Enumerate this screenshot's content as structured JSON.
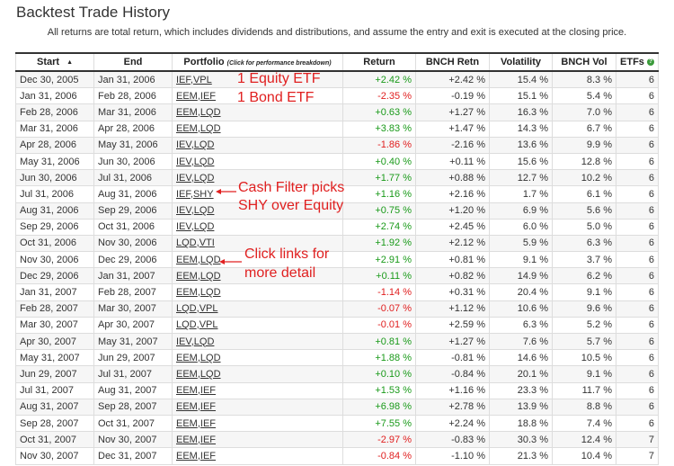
{
  "page": {
    "title": "Backtest Trade History",
    "subtitle": "All returns are total return, which includes dividends and distributions, and assume the entry and exit is executed at the closing price."
  },
  "table": {
    "headers": {
      "start": "Start",
      "end": "End",
      "portfolio": "Portfolio",
      "portfolio_note": "(Click for performance breakdown)",
      "return": "Return",
      "bench_return": "BNCH Retn",
      "volatility": "Volatility",
      "bench_vol": "BNCH Vol",
      "etfs": "ETFs"
    },
    "sort_icon": "sort-ascending-icon",
    "help_icon": "help-icon",
    "rows": [
      {
        "start": "Dec 30, 2005",
        "end": "Jan 31, 2006",
        "portfolio": [
          "IEF",
          "VPL"
        ],
        "ret": "+2.42 %",
        "bret": "+2.42 %",
        "vol": "15.4 %",
        "bvol": "8.3 %",
        "etfs": "6"
      },
      {
        "start": "Jan 31, 2006",
        "end": "Feb 28, 2006",
        "portfolio": [
          "EEM",
          "IEF"
        ],
        "ret": "-2.35 %",
        "bret": "-0.19 %",
        "vol": "15.1 %",
        "bvol": "5.4 %",
        "etfs": "6"
      },
      {
        "start": "Feb 28, 2006",
        "end": "Mar 31, 2006",
        "portfolio": [
          "EEM",
          "LQD"
        ],
        "ret": "+0.63 %",
        "bret": "+1.27 %",
        "vol": "16.3 %",
        "bvol": "7.0 %",
        "etfs": "6"
      },
      {
        "start": "Mar 31, 2006",
        "end": "Apr 28, 2006",
        "portfolio": [
          "EEM",
          "LQD"
        ],
        "ret": "+3.83 %",
        "bret": "+1.47 %",
        "vol": "14.3 %",
        "bvol": "6.7 %",
        "etfs": "6"
      },
      {
        "start": "Apr 28, 2006",
        "end": "May 31, 2006",
        "portfolio": [
          "IEV",
          "LQD"
        ],
        "ret": "-1.86 %",
        "bret": "-2.16 %",
        "vol": "13.6 %",
        "bvol": "9.9 %",
        "etfs": "6"
      },
      {
        "start": "May 31, 2006",
        "end": "Jun 30, 2006",
        "portfolio": [
          "IEV",
          "LQD"
        ],
        "ret": "+0.40 %",
        "bret": "+0.11 %",
        "vol": "15.6 %",
        "bvol": "12.8 %",
        "etfs": "6"
      },
      {
        "start": "Jun 30, 2006",
        "end": "Jul 31, 2006",
        "portfolio": [
          "IEV",
          "LQD"
        ],
        "ret": "+1.77 %",
        "bret": "+0.88 %",
        "vol": "12.7 %",
        "bvol": "10.2 %",
        "etfs": "6"
      },
      {
        "start": "Jul 31, 2006",
        "end": "Aug 31, 2006",
        "portfolio": [
          "IEF",
          "SHY"
        ],
        "ret": "+1.16 %",
        "bret": "+2.16 %",
        "vol": "1.7 %",
        "bvol": "6.1 %",
        "etfs": "6"
      },
      {
        "start": "Aug 31, 2006",
        "end": "Sep 29, 2006",
        "portfolio": [
          "IEV",
          "LQD"
        ],
        "ret": "+0.75 %",
        "bret": "+1.20 %",
        "vol": "6.9 %",
        "bvol": "5.6 %",
        "etfs": "6"
      },
      {
        "start": "Sep 29, 2006",
        "end": "Oct 31, 2006",
        "portfolio": [
          "IEV",
          "LQD"
        ],
        "ret": "+2.74 %",
        "bret": "+2.45 %",
        "vol": "6.0 %",
        "bvol": "5.0 %",
        "etfs": "6"
      },
      {
        "start": "Oct 31, 2006",
        "end": "Nov 30, 2006",
        "portfolio": [
          "LQD",
          "VTI"
        ],
        "ret": "+1.92 %",
        "bret": "+2.12 %",
        "vol": "5.9 %",
        "bvol": "6.3 %",
        "etfs": "6"
      },
      {
        "start": "Nov 30, 2006",
        "end": "Dec 29, 2006",
        "portfolio": [
          "EEM",
          "LQD"
        ],
        "ret": "+2.91 %",
        "bret": "+0.81 %",
        "vol": "9.1 %",
        "bvol": "3.7 %",
        "etfs": "6"
      },
      {
        "start": "Dec 29, 2006",
        "end": "Jan 31, 2007",
        "portfolio": [
          "EEM",
          "LQD"
        ],
        "ret": "+0.11 %",
        "bret": "+0.82 %",
        "vol": "14.9 %",
        "bvol": "6.2 %",
        "etfs": "6"
      },
      {
        "start": "Jan 31, 2007",
        "end": "Feb 28, 2007",
        "portfolio": [
          "EEM",
          "LQD"
        ],
        "ret": "-1.14 %",
        "bret": "+0.31 %",
        "vol": "20.4 %",
        "bvol": "9.1 %",
        "etfs": "6"
      },
      {
        "start": "Feb 28, 2007",
        "end": "Mar 30, 2007",
        "portfolio": [
          "LQD",
          "VPL"
        ],
        "ret": "-0.07 %",
        "bret": "+1.12 %",
        "vol": "10.6 %",
        "bvol": "9.6 %",
        "etfs": "6"
      },
      {
        "start": "Mar 30, 2007",
        "end": "Apr 30, 2007",
        "portfolio": [
          "LQD",
          "VPL"
        ],
        "ret": "-0.01 %",
        "bret": "+2.59 %",
        "vol": "6.3 %",
        "bvol": "5.2 %",
        "etfs": "6"
      },
      {
        "start": "Apr 30, 2007",
        "end": "May 31, 2007",
        "portfolio": [
          "IEV",
          "LQD"
        ],
        "ret": "+0.81 %",
        "bret": "+1.27 %",
        "vol": "7.6 %",
        "bvol": "5.7 %",
        "etfs": "6"
      },
      {
        "start": "May 31, 2007",
        "end": "Jun 29, 2007",
        "portfolio": [
          "EEM",
          "LQD"
        ],
        "ret": "+1.88 %",
        "bret": "-0.81 %",
        "vol": "14.6 %",
        "bvol": "10.5 %",
        "etfs": "6"
      },
      {
        "start": "Jun 29, 2007",
        "end": "Jul 31, 2007",
        "portfolio": [
          "EEM",
          "LQD"
        ],
        "ret": "+0.10 %",
        "bret": "-0.84 %",
        "vol": "20.1 %",
        "bvol": "9.1 %",
        "etfs": "6"
      },
      {
        "start": "Jul 31, 2007",
        "end": "Aug 31, 2007",
        "portfolio": [
          "EEM",
          "IEF"
        ],
        "ret": "+1.53 %",
        "bret": "+1.16 %",
        "vol": "23.3 %",
        "bvol": "11.7 %",
        "etfs": "6"
      },
      {
        "start": "Aug 31, 2007",
        "end": "Sep 28, 2007",
        "portfolio": [
          "EEM",
          "IEF"
        ],
        "ret": "+6.98 %",
        "bret": "+2.78 %",
        "vol": "13.9 %",
        "bvol": "8.8 %",
        "etfs": "6"
      },
      {
        "start": "Sep 28, 2007",
        "end": "Oct 31, 2007",
        "portfolio": [
          "EEM",
          "IEF"
        ],
        "ret": "+7.55 %",
        "bret": "+2.24 %",
        "vol": "18.8 %",
        "bvol": "7.4 %",
        "etfs": "6"
      },
      {
        "start": "Oct 31, 2007",
        "end": "Nov 30, 2007",
        "portfolio": [
          "EEM",
          "IEF"
        ],
        "ret": "-2.97 %",
        "bret": "-0.83 %",
        "vol": "30.3 %",
        "bvol": "12.4 %",
        "etfs": "7"
      },
      {
        "start": "Nov 30, 2007",
        "end": "Dec 31, 2007",
        "portfolio": [
          "EEM",
          "IEF"
        ],
        "ret": "-0.84 %",
        "bret": "-1.10 %",
        "vol": "21.3 %",
        "bvol": "10.4 %",
        "etfs": "7"
      }
    ]
  },
  "annotations": {
    "equity_etf": "1 Equity ETF",
    "bond_etf": "1 Bond ETF",
    "cash_filter_1": "Cash Filter picks",
    "cash_filter_2": "SHY over Equity",
    "click_links_1": "Click links for",
    "click_links_2": "more detail",
    "arrow_icon": "arrow-left-icon"
  },
  "colors": {
    "positive": "#1a9a1a",
    "negative": "#e02020",
    "annotation": "#e02020"
  }
}
